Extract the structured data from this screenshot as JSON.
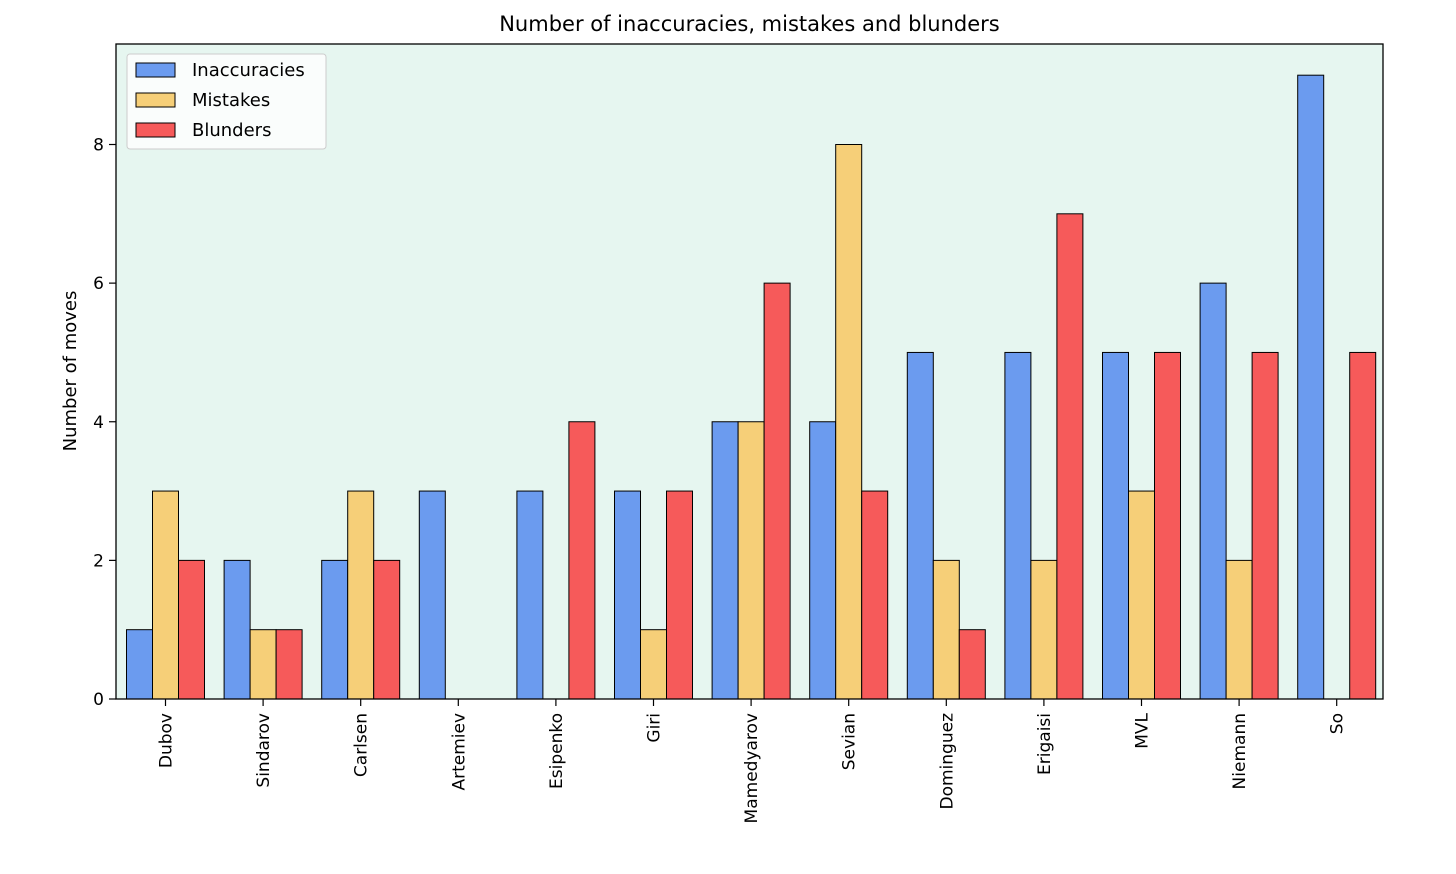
{
  "chart_data": {
    "type": "bar",
    "title": "Number of inaccuracies, mistakes and blunders",
    "xlabel": "",
    "ylabel": "Number of moves",
    "ylim": [
      0,
      9.45
    ],
    "yticks": [
      "0",
      "2",
      "4",
      "6",
      "8"
    ],
    "grid": false,
    "legend_position": "top-left",
    "plot_background": "#e6f6f0",
    "categories": [
      "Dubov",
      "Sindarov",
      "Carlsen",
      "Artemiev",
      "Esipenko",
      "Giri",
      "Mamedyarov",
      "Sevian",
      "Dominguez",
      "Erigaisi",
      "MVL",
      "Niemann",
      "So"
    ],
    "series": [
      {
        "name": "Inaccuracies",
        "color": "#6b9bef",
        "values": [
          1,
          2,
          2,
          3,
          3,
          3,
          4,
          4,
          5,
          5,
          5,
          6,
          9
        ]
      },
      {
        "name": "Mistakes",
        "color": "#f6cf78",
        "values": [
          3,
          1,
          3,
          0,
          0,
          1,
          4,
          8,
          2,
          2,
          3,
          2,
          0
        ]
      },
      {
        "name": "Blunders",
        "color": "#f65a5a",
        "values": [
          2,
          1,
          2,
          0,
          4,
          3,
          6,
          3,
          1,
          7,
          5,
          5,
          5
        ]
      }
    ]
  }
}
